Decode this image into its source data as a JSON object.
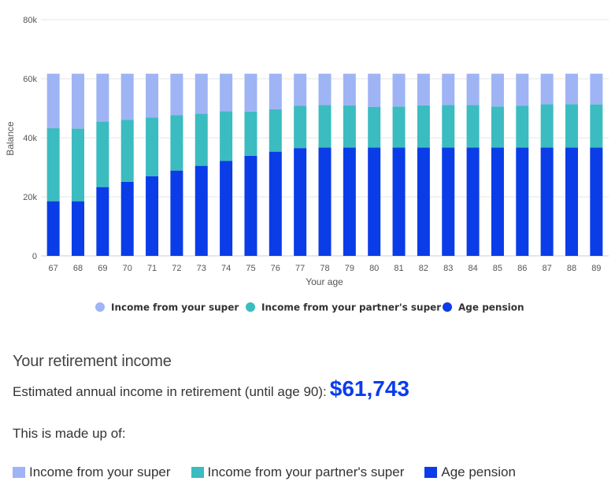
{
  "chart_data": {
    "type": "bar",
    "stacked": true,
    "xlabel": "Your age",
    "ylabel": "Balance",
    "ylim": [
      0,
      80000
    ],
    "y_ticks": [
      {
        "value": 0,
        "label": "0"
      },
      {
        "value": 20000,
        "label": "20k"
      },
      {
        "value": 40000,
        "label": "40k"
      },
      {
        "value": 60000,
        "label": "60k"
      },
      {
        "value": 80000,
        "label": "80k"
      }
    ],
    "grid": true,
    "legend_position": "bottom",
    "categories": [
      "67",
      "68",
      "69",
      "70",
      "71",
      "72",
      "73",
      "74",
      "75",
      "76",
      "77",
      "78",
      "79",
      "80",
      "81",
      "82",
      "83",
      "84",
      "85",
      "86",
      "87",
      "88",
      "89"
    ],
    "series": [
      {
        "name": "Age pension",
        "color": "#0a3ce8",
        "values": [
          18500,
          18500,
          23300,
          25100,
          27000,
          28900,
          30500,
          32200,
          33900,
          35300,
          36500,
          36700,
          36700,
          36700,
          36700,
          36700,
          36700,
          36700,
          36700,
          36700,
          36700,
          36700,
          36700
        ]
      },
      {
        "name": "Income from your partner's super",
        "color": "#3bbcc0",
        "values": [
          24700,
          24600,
          22200,
          21000,
          19800,
          18700,
          17700,
          16800,
          14900,
          14300,
          14300,
          14400,
          14300,
          13800,
          13900,
          14300,
          14400,
          14400,
          13900,
          14100,
          14700,
          14700,
          14600
        ]
      },
      {
        "name": "Income from your super",
        "color": "#9fb4f4",
        "values": [
          18500,
          18600,
          16200,
          15600,
          14900,
          14100,
          13500,
          12700,
          12900,
          12100,
          10900,
          10600,
          10700,
          11200,
          11100,
          10700,
          10600,
          10600,
          11100,
          10900,
          10300,
          10300,
          10400
        ]
      }
    ],
    "legend_order": [
      "Income from your super",
      "Income from your partner's super",
      "Age pension"
    ]
  },
  "summary": {
    "title": "Your retirement income",
    "estimate_label": "Estimated annual income in retirement (until age 90):",
    "estimate_value": "$61,743",
    "made_up_label": "This is made up of:"
  },
  "bottom_legend": [
    {
      "label": "Income from your super",
      "color": "#9fb4f4"
    },
    {
      "label": "Income from your partner's super",
      "color": "#3bbcc0"
    },
    {
      "label": "Age pension",
      "color": "#0a3ce8"
    }
  ]
}
